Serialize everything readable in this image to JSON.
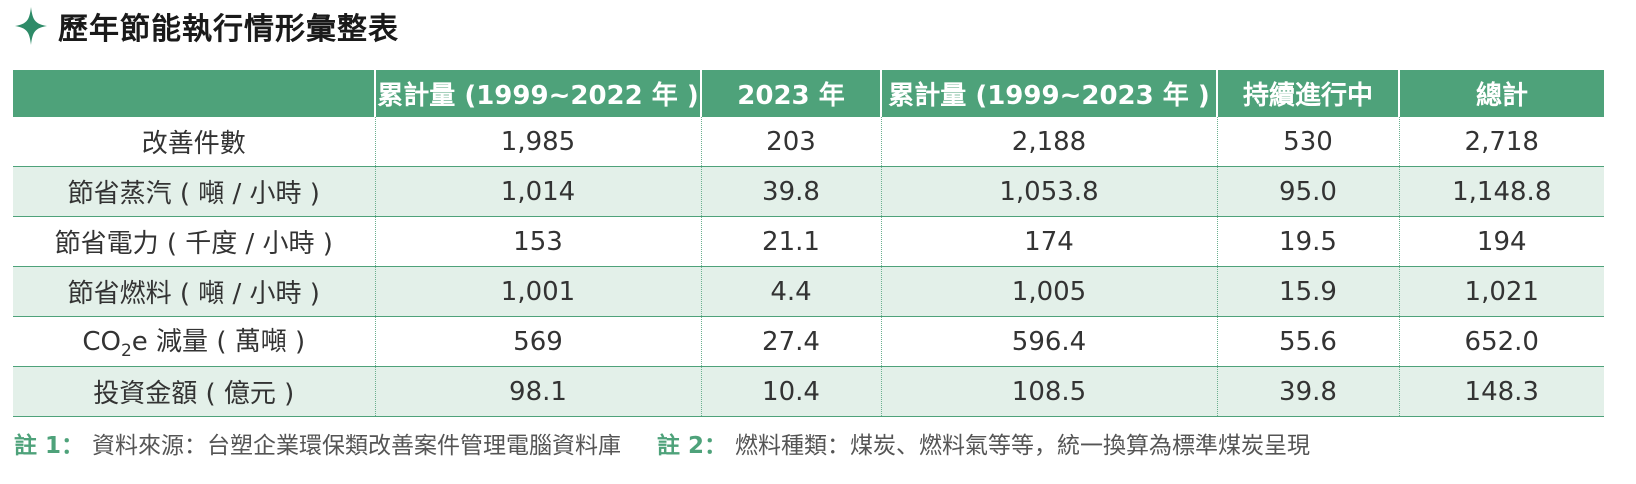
{
  "title": "歷年節能執行情形彙整表",
  "colors": {
    "accent": "#4ea27a",
    "row_shade": "#e3f0e9",
    "sparkle": "#2e8b68"
  },
  "icons": {
    "title_icon": "sparkle-icon"
  },
  "table": {
    "headers": [
      "",
      "累計量 (1999~2022 年 )",
      "2023 年",
      "累計量 (1999~2023 年 )",
      "持續進行中",
      "總計"
    ],
    "rows": [
      {
        "label": "改善件數",
        "values": [
          "1,985",
          "203",
          "2,188",
          "530",
          "2,718"
        ]
      },
      {
        "label": "節省蒸汽 ( 噸 / 小時 )",
        "values": [
          "1,014",
          "39.8",
          "1,053.8",
          "95.0",
          "1,148.8"
        ]
      },
      {
        "label": "節省電力 ( 千度 / 小時 )",
        "values": [
          "153",
          "21.1",
          "174",
          "19.5",
          "194"
        ]
      },
      {
        "label": "節省燃料 ( 噸 / 小時 )",
        "values": [
          "1,001",
          "4.4",
          "1,005",
          "15.9",
          "1,021"
        ]
      },
      {
        "label_prefix": "CO",
        "label_sub": "2",
        "label_suffix": "e 減量 ( 萬噸 )",
        "values": [
          "569",
          "27.4",
          "596.4",
          "55.6",
          "652.0"
        ]
      },
      {
        "label": "投資金額 ( 億元 )",
        "values": [
          "98.1",
          "10.4",
          "108.5",
          "39.8",
          "148.3"
        ]
      }
    ]
  },
  "notes": [
    {
      "label": "註 1：",
      "text": "資料來源：台塑企業環保類改善案件管理電腦資料庫"
    },
    {
      "label": "註 2：",
      "text": "燃料種類：煤炭、燃料氣等等，統一換算為標準煤炭呈現"
    }
  ]
}
